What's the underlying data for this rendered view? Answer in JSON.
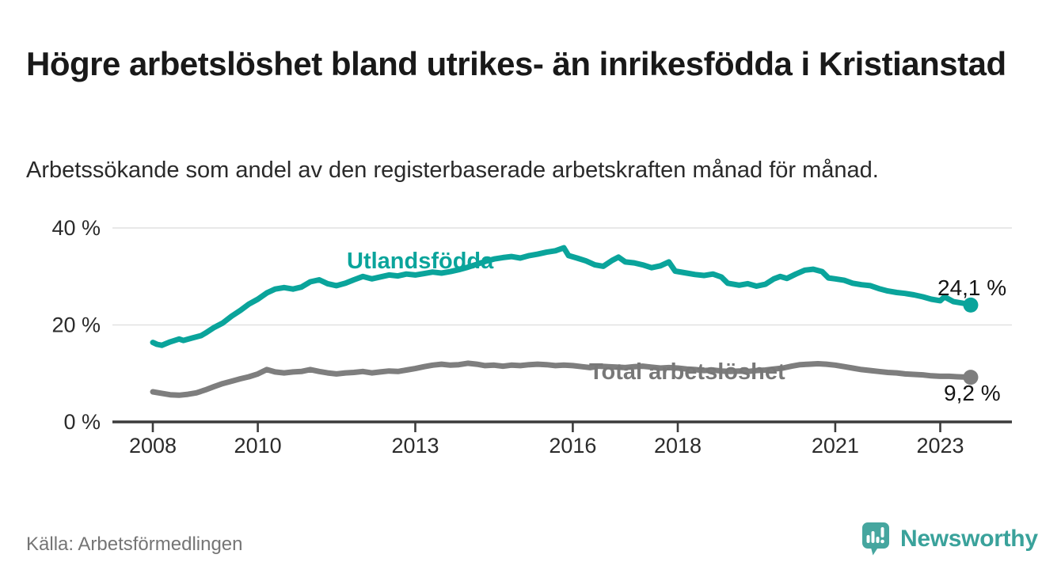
{
  "header": {
    "title": "Högre arbetslöshet bland utrikes- än inrikesfödda i Kristianstad",
    "subtitle": "Arbetssökande som andel av den registerbaserade arbetskraften månad för månad."
  },
  "footer": {
    "source": "Källa: Arbetsförmedlingen",
    "brand": "Newsworthy",
    "logo_icon": "bar-chart-speech-bubble-icon"
  },
  "colors": {
    "accent": "#0aa49b",
    "gray": "#7e7e7e",
    "gray_label": "#787878",
    "axis": "#3c3c3c",
    "gridline": "#e1e1e1",
    "value_label": "#141414",
    "logo_mark": "#46a69f",
    "logo_text": "#3aa29b"
  },
  "chart_data": {
    "type": "line",
    "title": "Högre arbetslöshet bland utrikes- än inrikesfödda i Kristianstad",
    "subtitle": "Arbetssökande som andel av den registerbaserade arbetskraften månad för månad.",
    "source": "Källa: Arbetsförmedlingen",
    "unit": "%",
    "xlim": [
      2007.23,
      2024.36
    ],
    "ylim": [
      0,
      44
    ],
    "grid": "horizontal",
    "legend_position": "inline-labels",
    "x_ticks": [
      2008,
      2010,
      2013,
      2016,
      2018,
      2021,
      2023
    ],
    "y_ticks": [
      {
        "value": 0,
        "label": "0 %"
      },
      {
        "value": 20,
        "label": "20 %"
      },
      {
        "value": 40,
        "label": "40 %"
      }
    ],
    "series": [
      {
        "name": "Utlandsfödda",
        "color": "#0aa49b",
        "end_label": "24,1 %",
        "end_value": 24.1,
        "points": [
          [
            2008.0,
            16.4
          ],
          [
            2008.08,
            16.0
          ],
          [
            2008.17,
            15.8
          ],
          [
            2008.33,
            16.5
          ],
          [
            2008.5,
            17.1
          ],
          [
            2008.58,
            16.8
          ],
          [
            2008.75,
            17.3
          ],
          [
            2008.92,
            17.8
          ],
          [
            2009.0,
            18.3
          ],
          [
            2009.17,
            19.5
          ],
          [
            2009.33,
            20.4
          ],
          [
            2009.5,
            21.8
          ],
          [
            2009.67,
            23.0
          ],
          [
            2009.83,
            24.3
          ],
          [
            2010.0,
            25.3
          ],
          [
            2010.17,
            26.6
          ],
          [
            2010.33,
            27.4
          ],
          [
            2010.5,
            27.7
          ],
          [
            2010.67,
            27.4
          ],
          [
            2010.83,
            27.8
          ],
          [
            2011.0,
            28.9
          ],
          [
            2011.17,
            29.3
          ],
          [
            2011.33,
            28.5
          ],
          [
            2011.5,
            28.1
          ],
          [
            2011.67,
            28.6
          ],
          [
            2011.83,
            29.3
          ],
          [
            2012.0,
            30.0
          ],
          [
            2012.17,
            29.5
          ],
          [
            2012.33,
            29.9
          ],
          [
            2012.5,
            30.3
          ],
          [
            2012.67,
            30.1
          ],
          [
            2012.83,
            30.5
          ],
          [
            2013.0,
            30.3
          ],
          [
            2013.17,
            30.6
          ],
          [
            2013.33,
            30.9
          ],
          [
            2013.5,
            30.7
          ],
          [
            2013.67,
            31.0
          ],
          [
            2013.83,
            31.4
          ],
          [
            2014.0,
            31.9
          ],
          [
            2014.17,
            32.5
          ],
          [
            2014.33,
            33.1
          ],
          [
            2014.5,
            33.6
          ],
          [
            2014.67,
            33.9
          ],
          [
            2014.83,
            34.1
          ],
          [
            2015.0,
            33.8
          ],
          [
            2015.17,
            34.3
          ],
          [
            2015.33,
            34.6
          ],
          [
            2015.5,
            35.0
          ],
          [
            2015.67,
            35.3
          ],
          [
            2015.83,
            35.9
          ],
          [
            2015.92,
            34.3
          ],
          [
            2016.08,
            33.8
          ],
          [
            2016.25,
            33.2
          ],
          [
            2016.42,
            32.4
          ],
          [
            2016.58,
            32.1
          ],
          [
            2016.75,
            33.3
          ],
          [
            2016.87,
            34.0
          ],
          [
            2017.0,
            33.0
          ],
          [
            2017.17,
            32.8
          ],
          [
            2017.33,
            32.4
          ],
          [
            2017.5,
            31.8
          ],
          [
            2017.67,
            32.2
          ],
          [
            2017.83,
            33.0
          ],
          [
            2017.95,
            31.1
          ],
          [
            2018.17,
            30.7
          ],
          [
            2018.33,
            30.4
          ],
          [
            2018.5,
            30.2
          ],
          [
            2018.67,
            30.5
          ],
          [
            2018.83,
            29.9
          ],
          [
            2018.95,
            28.6
          ],
          [
            2019.17,
            28.2
          ],
          [
            2019.33,
            28.5
          ],
          [
            2019.5,
            28.0
          ],
          [
            2019.67,
            28.4
          ],
          [
            2019.83,
            29.5
          ],
          [
            2019.95,
            30.0
          ],
          [
            2020.08,
            29.6
          ],
          [
            2020.25,
            30.5
          ],
          [
            2020.42,
            31.3
          ],
          [
            2020.58,
            31.5
          ],
          [
            2020.75,
            31.0
          ],
          [
            2020.87,
            29.7
          ],
          [
            2021.0,
            29.5
          ],
          [
            2021.17,
            29.2
          ],
          [
            2021.33,
            28.6
          ],
          [
            2021.5,
            28.3
          ],
          [
            2021.67,
            28.1
          ],
          [
            2021.83,
            27.5
          ],
          [
            2022.0,
            27.0
          ],
          [
            2022.17,
            26.7
          ],
          [
            2022.33,
            26.5
          ],
          [
            2022.5,
            26.2
          ],
          [
            2022.67,
            25.8
          ],
          [
            2022.83,
            25.3
          ],
          [
            2023.0,
            25.0
          ],
          [
            2023.08,
            25.8
          ],
          [
            2023.25,
            24.8
          ],
          [
            2023.42,
            24.5
          ],
          [
            2023.58,
            24.1
          ]
        ]
      },
      {
        "name": "Total arbetslöshet",
        "color": "#7e7e7e",
        "end_label": "9,2 %",
        "end_value": 9.2,
        "points": [
          [
            2008.0,
            6.2
          ],
          [
            2008.17,
            5.9
          ],
          [
            2008.33,
            5.6
          ],
          [
            2008.5,
            5.5
          ],
          [
            2008.67,
            5.7
          ],
          [
            2008.83,
            6.0
          ],
          [
            2009.0,
            6.6
          ],
          [
            2009.17,
            7.3
          ],
          [
            2009.33,
            7.9
          ],
          [
            2009.5,
            8.4
          ],
          [
            2009.67,
            8.9
          ],
          [
            2009.83,
            9.3
          ],
          [
            2010.0,
            9.9
          ],
          [
            2010.17,
            10.8
          ],
          [
            2010.33,
            10.3
          ],
          [
            2010.5,
            10.1
          ],
          [
            2010.67,
            10.3
          ],
          [
            2010.83,
            10.4
          ],
          [
            2011.0,
            10.8
          ],
          [
            2011.17,
            10.4
          ],
          [
            2011.33,
            10.1
          ],
          [
            2011.5,
            9.9
          ],
          [
            2011.67,
            10.1
          ],
          [
            2011.83,
            10.2
          ],
          [
            2012.0,
            10.4
          ],
          [
            2012.17,
            10.1
          ],
          [
            2012.33,
            10.3
          ],
          [
            2012.5,
            10.5
          ],
          [
            2012.67,
            10.4
          ],
          [
            2012.83,
            10.7
          ],
          [
            2013.0,
            11.0
          ],
          [
            2013.17,
            11.4
          ],
          [
            2013.33,
            11.7
          ],
          [
            2013.5,
            11.9
          ],
          [
            2013.67,
            11.7
          ],
          [
            2013.83,
            11.8
          ],
          [
            2014.0,
            12.1
          ],
          [
            2014.17,
            11.9
          ],
          [
            2014.33,
            11.6
          ],
          [
            2014.5,
            11.7
          ],
          [
            2014.67,
            11.5
          ],
          [
            2014.83,
            11.7
          ],
          [
            2015.0,
            11.6
          ],
          [
            2015.17,
            11.8
          ],
          [
            2015.33,
            11.9
          ],
          [
            2015.5,
            11.8
          ],
          [
            2015.67,
            11.6
          ],
          [
            2015.83,
            11.7
          ],
          [
            2016.0,
            11.6
          ],
          [
            2016.17,
            11.4
          ],
          [
            2016.33,
            11.2
          ],
          [
            2016.5,
            11.5
          ],
          [
            2016.67,
            11.4
          ],
          [
            2016.83,
            11.3
          ],
          [
            2017.0,
            11.2
          ],
          [
            2017.17,
            11.4
          ],
          [
            2017.33,
            11.5
          ],
          [
            2017.5,
            11.3
          ],
          [
            2017.67,
            11.1
          ],
          [
            2017.83,
            11.2
          ],
          [
            2018.0,
            11.1
          ],
          [
            2018.17,
            10.9
          ],
          [
            2018.33,
            10.8
          ],
          [
            2018.5,
            10.6
          ],
          [
            2018.67,
            10.7
          ],
          [
            2018.83,
            10.5
          ],
          [
            2019.0,
            10.4
          ],
          [
            2019.17,
            10.5
          ],
          [
            2019.33,
            10.4
          ],
          [
            2019.5,
            10.6
          ],
          [
            2019.67,
            10.7
          ],
          [
            2019.83,
            10.9
          ],
          [
            2020.0,
            11.1
          ],
          [
            2020.17,
            11.5
          ],
          [
            2020.33,
            11.8
          ],
          [
            2020.5,
            11.9
          ],
          [
            2020.67,
            12.0
          ],
          [
            2020.83,
            11.9
          ],
          [
            2021.0,
            11.7
          ],
          [
            2021.17,
            11.4
          ],
          [
            2021.33,
            11.1
          ],
          [
            2021.5,
            10.8
          ],
          [
            2021.67,
            10.6
          ],
          [
            2021.83,
            10.4
          ],
          [
            2022.0,
            10.2
          ],
          [
            2022.17,
            10.1
          ],
          [
            2022.33,
            9.9
          ],
          [
            2022.5,
            9.8
          ],
          [
            2022.67,
            9.7
          ],
          [
            2022.83,
            9.5
          ],
          [
            2023.0,
            9.4
          ],
          [
            2023.17,
            9.4
          ],
          [
            2023.33,
            9.3
          ],
          [
            2023.58,
            9.2
          ]
        ]
      }
    ]
  }
}
